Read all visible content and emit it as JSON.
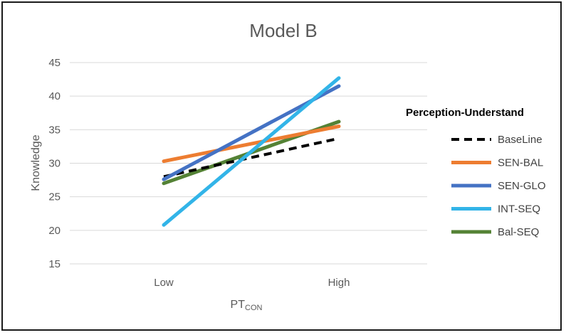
{
  "chart_data": {
    "type": "line",
    "title": "Model B",
    "xlabel": "PT",
    "xlabel_subscript": "CON",
    "ylabel": "Knowledge",
    "categories": [
      "Low",
      "High"
    ],
    "ylim": [
      15,
      45
    ],
    "yticks": [
      15,
      20,
      25,
      30,
      35,
      40,
      45
    ],
    "grid": true,
    "legend": {
      "title": "Perception-Understand",
      "placement": "right"
    },
    "series": [
      {
        "name": "BaseLine",
        "values": [
          28.0,
          33.7
        ],
        "color": "#000000",
        "dashed": true
      },
      {
        "name": "SEN-BAL",
        "values": [
          30.3,
          35.5
        ],
        "color": "#ED7D31",
        "dashed": false
      },
      {
        "name": "SEN-GLO",
        "values": [
          27.6,
          41.5
        ],
        "color": "#4472C4",
        "dashed": false
      },
      {
        "name": "INT-SEQ",
        "values": [
          20.8,
          42.7
        ],
        "color": "#32B4E8",
        "dashed": false
      },
      {
        "name": "Bal-SEQ",
        "values": [
          27.0,
          36.2
        ],
        "color": "#548235",
        "dashed": false
      }
    ]
  }
}
